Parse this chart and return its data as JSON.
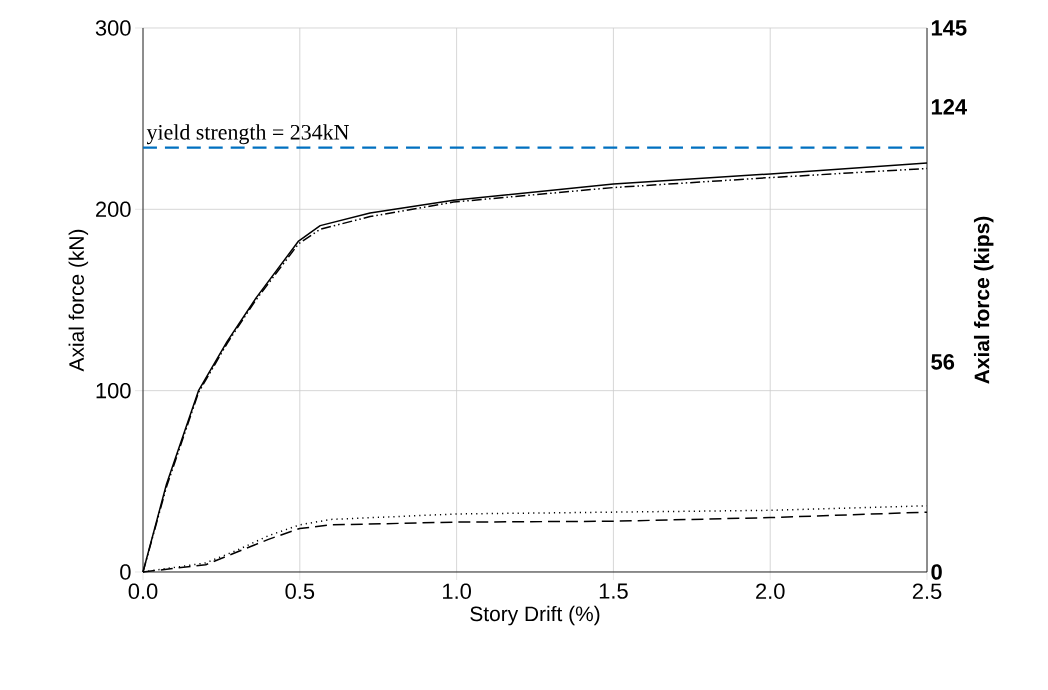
{
  "chart_data": {
    "type": "line",
    "xlabel": "Story Drift (%)",
    "ylabel": "Axial force (kN)",
    "y2label": "Axial force (kips)",
    "xlim": [
      0,
      2.5
    ],
    "xticks": [
      {
        "value": 0,
        "label": "0.0"
      },
      0.5,
      {
        "value": 1,
        "label": "1.0"
      },
      1.5,
      {
        "value": 2,
        "label": "2.0"
      },
      2.5
    ],
    "ylim": [
      0,
      300
    ],
    "yticks": [
      0,
      100,
      200,
      300
    ],
    "y2lim": [
      0,
      145
    ],
    "y2ticks": [
      0,
      56,
      124,
      145
    ],
    "grid": true,
    "ref_lines": [
      {
        "axis": "y",
        "value": 234,
        "label": "yield strength = 234kN",
        "color": "#0070c0",
        "line_style": "dashed"
      }
    ],
    "series": [
      {
        "color": "#000000",
        "line_style": "solid",
        "x": [
          0,
          0.075,
          0.177,
          0.268,
          0.36,
          0.496,
          0.565,
          0.724,
          0.99,
          1.5,
          2.0,
          2.5
        ],
        "values": [
          0,
          48.5,
          100,
          127,
          151,
          182.5,
          191,
          198,
          205,
          214,
          219.5,
          225.5
        ]
      },
      {
        "color": "#000000",
        "line_style": "dashdotdot",
        "x": [
          0,
          0.075,
          0.177,
          0.268,
          0.36,
          0.496,
          0.565,
          0.724,
          0.99,
          1.5,
          2.0,
          2.5
        ],
        "values": [
          0,
          47,
          99,
          126,
          150,
          181,
          189,
          196,
          204,
          212,
          217.5,
          222.5
        ]
      },
      {
        "color": "#000000",
        "line_style": "dotted",
        "x": [
          0,
          0.2,
          0.3,
          0.4,
          0.5,
          0.6,
          1.0,
          1.5,
          2.0,
          2.5
        ],
        "values": [
          0,
          5,
          12,
          20,
          26,
          29,
          32,
          33,
          34,
          36.5
        ]
      },
      {
        "color": "#000000",
        "line_style": "dashed",
        "x": [
          0,
          0.2,
          0.3,
          0.4,
          0.5,
          0.6,
          1.0,
          1.5,
          2.0,
          2.5
        ],
        "values": [
          0,
          4,
          11,
          18,
          24,
          26,
          27.5,
          28,
          30,
          33
        ]
      }
    ]
  }
}
